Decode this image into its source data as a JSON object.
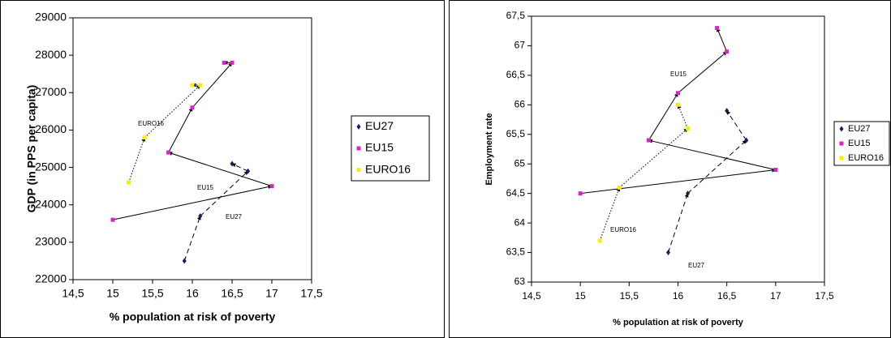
{
  "chart_data": [
    {
      "type": "scatter",
      "xlabel": "% population at risk of poverty",
      "ylabel": "GDP (in PPS per capita)",
      "xlim": [
        14.5,
        17.5
      ],
      "xticks": [
        {
          "value": 14.5,
          "label": "14,5"
        },
        15,
        {
          "value": 15.5,
          "label": "15,5"
        },
        16,
        {
          "value": 16.5,
          "label": "16,5"
        },
        17,
        {
          "value": 17.5,
          "label": "17,5"
        }
      ],
      "ylim": [
        22000,
        29000
      ],
      "yticks": [
        22000,
        23000,
        24000,
        25000,
        26000,
        27000,
        28000,
        29000
      ],
      "legend": "right",
      "series": [
        {
          "name": "EU27",
          "color": "#1a1a5e",
          "line_style": "dashed",
          "x": [
            15.9,
            16.1,
            16.7,
            16.5
          ],
          "values": [
            22500,
            23700,
            24900,
            25100
          ]
        },
        {
          "name": "EU15",
          "color": "#e020c8",
          "line_style": "solid",
          "x": [
            15,
            17,
            15.7,
            16,
            16.5,
            16.4
          ],
          "values": [
            23600,
            24500,
            25400,
            26600,
            27800,
            27800
          ]
        },
        {
          "name": "EURO16",
          "color": "#f5f000",
          "line_style": "dotted",
          "x": [
            15.2,
            15.4,
            16.1,
            16.0
          ],
          "values": [
            24600,
            25800,
            27200,
            27200
          ]
        }
      ],
      "annotations": [
        "EURO16",
        "EU15",
        "EU27"
      ]
    },
    {
      "type": "scatter",
      "xlabel": "% population at risk of poverty",
      "ylabel": "Employment rate",
      "xlim": [
        14.5,
        17.5
      ],
      "xticks": [
        {
          "value": 14.5,
          "label": "14,5"
        },
        15,
        {
          "value": 15.5,
          "label": "15,5"
        },
        16,
        {
          "value": 16.5,
          "label": "16,5"
        },
        17,
        {
          "value": 17.5,
          "label": "17,5"
        }
      ],
      "ylim": [
        63,
        67.5
      ],
      "yticks": [
        63,
        {
          "value": 63.5,
          "label": "63,5"
        },
        64,
        {
          "value": 64.5,
          "label": "64,5"
        },
        65,
        {
          "value": 65.5,
          "label": "65,5"
        },
        66,
        {
          "value": 66.5,
          "label": "66,5"
        },
        67,
        {
          "value": 67.5,
          "label": "67,5"
        }
      ],
      "legend": "right",
      "series": [
        {
          "name": "EU27",
          "color": "#1a1a5e",
          "line_style": "dashed",
          "x": [
            15.9,
            16.1,
            16.7,
            16.5
          ],
          "values": [
            63.5,
            64.5,
            65.4,
            65.9
          ]
        },
        {
          "name": "EU15",
          "color": "#e020c8",
          "line_style": "solid",
          "x": [
            15,
            17,
            15.7,
            16,
            16.5,
            16.4
          ],
          "values": [
            64.5,
            64.9,
            65.4,
            66.2,
            66.9,
            67.3
          ]
        },
        {
          "name": "EURO16",
          "color": "#f5f000",
          "line_style": "dotted",
          "x": [
            15.2,
            15.4,
            16.1,
            16.0
          ],
          "values": [
            63.7,
            64.6,
            65.6,
            66.0
          ]
        }
      ],
      "annotations": [
        "EU15",
        "EURO16",
        "EU27"
      ]
    }
  ]
}
